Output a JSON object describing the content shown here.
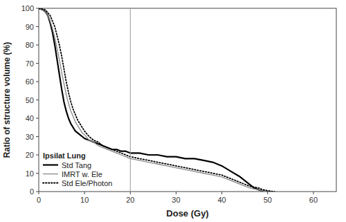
{
  "chart_data": {
    "type": "line",
    "xlabel": "Dose (Gy)",
    "ylabel": "Ratio of structure volume (%)",
    "xlim": [
      0,
      65
    ],
    "ylim": [
      0,
      100
    ],
    "xticks": [
      0,
      10,
      20,
      30,
      40,
      50,
      60
    ],
    "yticks": [
      0,
      10,
      20,
      30,
      40,
      50,
      60,
      70,
      80,
      90,
      100
    ],
    "grid": false,
    "legend": "lower left",
    "legend_title": "Ipsilat Lung",
    "vline_x": 20,
    "series": [
      {
        "name": "Std Tang",
        "color": "#000000",
        "line_style": "solid",
        "x": [
          0,
          0.5,
          1,
          1.5,
          2,
          2.5,
          3,
          3.5,
          4,
          4.5,
          5,
          5.5,
          6,
          6.5,
          7,
          7.5,
          8,
          8.5,
          9,
          9.5,
          10,
          11,
          12,
          13,
          14,
          15,
          16,
          17,
          18,
          19,
          20,
          22,
          24,
          26,
          28,
          30,
          32,
          34,
          36,
          38,
          40,
          42,
          44,
          45,
          46,
          47,
          48,
          49,
          49.5,
          50,
          50.2
        ],
        "values": [
          100,
          99.5,
          99,
          98,
          96,
          92,
          87,
          80,
          72,
          64,
          56,
          49,
          44,
          40,
          37,
          35,
          33,
          32,
          31,
          30,
          29,
          28,
          27,
          26,
          25,
          24,
          23,
          23,
          22,
          22,
          21,
          21,
          20,
          20,
          19,
          19,
          18,
          18,
          17,
          16,
          14,
          11,
          8,
          6,
          4,
          2,
          1,
          0.3,
          0.1,
          0,
          0
        ]
      },
      {
        "name": "IMRT w. Ele",
        "color": "#888888",
        "line_style": "solid",
        "x": [
          0,
          0.5,
          1,
          1.5,
          2,
          2.5,
          3,
          3.5,
          4,
          4.5,
          5,
          5.5,
          6,
          6.5,
          7,
          7.5,
          8,
          8.5,
          9,
          9.5,
          10,
          11,
          12,
          13,
          14,
          15,
          16,
          17,
          18,
          19,
          20,
          22,
          24,
          26,
          28,
          30,
          32,
          34,
          36,
          38,
          40,
          42,
          44,
          46,
          47,
          48,
          49,
          49.5,
          50,
          50.5
        ],
        "values": [
          100,
          99.5,
          99,
          98,
          96,
          93,
          89,
          84,
          78,
          72,
          65,
          59,
          53,
          48,
          44,
          41,
          38,
          36,
          34,
          32,
          31,
          28,
          27,
          25,
          24,
          23,
          22,
          21,
          20,
          19,
          18,
          17,
          16,
          15,
          14,
          13,
          12,
          11,
          10,
          9,
          8,
          6,
          4,
          2,
          1.5,
          1,
          0.3,
          0.1,
          0,
          0
        ]
      },
      {
        "name": "Std Ele/Photon",
        "color": "#000000",
        "line_style": "dotted",
        "x": [
          0,
          0.5,
          1,
          1.5,
          2,
          2.5,
          3,
          3.5,
          4,
          4.5,
          5,
          5.5,
          6,
          6.5,
          7,
          7.5,
          8,
          8.5,
          9,
          9.5,
          10,
          11,
          12,
          13,
          14,
          15,
          16,
          17,
          18,
          19,
          20,
          22,
          24,
          26,
          28,
          30,
          32,
          34,
          36,
          38,
          40,
          42,
          44,
          46,
          47,
          48,
          49,
          50,
          51,
          51.5
        ],
        "values": [
          100,
          99.8,
          99.5,
          99,
          97.5,
          96,
          93,
          90,
          85,
          80,
          74,
          67,
          60,
          54,
          49,
          45,
          42,
          39,
          37,
          35,
          33,
          30,
          28,
          27,
          25,
          24,
          23,
          22,
          21,
          20,
          19,
          18,
          17,
          16,
          15,
          14,
          13,
          12,
          11,
          10,
          9,
          7,
          5,
          3,
          2.5,
          2,
          1,
          0.5,
          0.1,
          0
        ]
      }
    ]
  }
}
